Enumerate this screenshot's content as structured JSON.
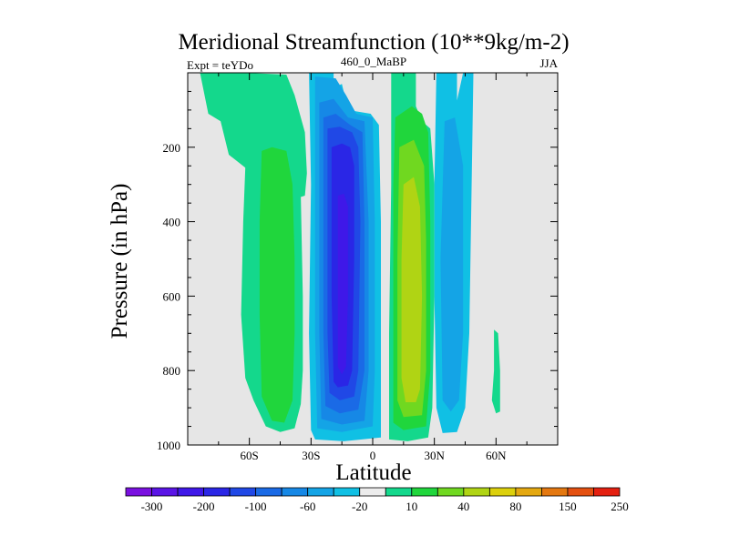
{
  "chart_data": {
    "type": "contour",
    "title": "Meridional Streamfunction (10**9kg/m-2)",
    "left_label": "Expt = teYDo",
    "center_label": "460_0_MaBP",
    "right_label": "JJA",
    "xlabel": "Latitude",
    "ylabel": "Pressure (in hPa)",
    "xlim": [
      -90,
      90
    ],
    "ylim": [
      0,
      1000
    ],
    "y_inverted": true,
    "x_ticks": [
      {
        "value": -60,
        "label": "60S"
      },
      {
        "value": -30,
        "label": "30S"
      },
      {
        "value": 0,
        "label": "0"
      },
      {
        "value": 30,
        "label": "30N"
      },
      {
        "value": 60,
        "label": "60N"
      }
    ],
    "y_ticks": [
      {
        "value": 200,
        "label": "200"
      },
      {
        "value": 400,
        "label": "400"
      },
      {
        "value": 600,
        "label": "600"
      },
      {
        "value": 800,
        "label": "800"
      },
      {
        "value": 1000,
        "label": "1000"
      }
    ],
    "background_color": "#e6e6e6",
    "colorbar": {
      "colors": [
        "#7a10e0",
        "#5a14e6",
        "#3f18e8",
        "#2a26e6",
        "#2048e6",
        "#1a6ae6",
        "#1688e6",
        "#14a4e6",
        "#10c0e4",
        "#ececec",
        "#14d88c",
        "#20d63c",
        "#70d820",
        "#b0d414",
        "#dcd00c",
        "#e4a810",
        "#e47810",
        "#e45010",
        "#e42010"
      ],
      "tick_labels": [
        "-300",
        "-200",
        "-100",
        "-60",
        "-20",
        "10",
        "40",
        "80",
        "150",
        "250"
      ]
    },
    "regions": [
      {
        "name": "sh-upper-green-band",
        "value": 10,
        "color": "#14d88c",
        "points": [
          [
            -84,
            0
          ],
          [
            -62,
            0
          ],
          [
            -42,
            5
          ],
          [
            -38,
            60
          ],
          [
            -33,
            160
          ],
          [
            -32,
            270
          ],
          [
            -33,
            330
          ],
          [
            -50,
            360
          ],
          [
            -58,
            300
          ],
          [
            -62,
            255
          ],
          [
            -70,
            220
          ],
          [
            -74,
            130
          ],
          [
            -80,
            110
          ]
        ]
      },
      {
        "name": "sh-lower-green-band",
        "value": 10,
        "color": "#14d88c",
        "points": [
          [
            -62,
            255
          ],
          [
            -50,
            220
          ],
          [
            -39,
            230
          ],
          [
            -35,
            330
          ],
          [
            -34,
            600
          ],
          [
            -34,
            800
          ],
          [
            -35,
            890
          ],
          [
            -38,
            955
          ],
          [
            -45,
            965
          ],
          [
            -52,
            950
          ],
          [
            -58,
            880
          ],
          [
            -62,
            820
          ],
          [
            -64,
            650
          ],
          [
            -63,
            400
          ]
        ]
      },
      {
        "name": "sh-cell-40",
        "value": 40,
        "color": "#20d63c",
        "points": [
          [
            -54,
            210
          ],
          [
            -49,
            200
          ],
          [
            -42,
            210
          ],
          [
            -39,
            300
          ],
          [
            -38,
            500
          ],
          [
            -38,
            700
          ],
          [
            -39,
            880
          ],
          [
            -43,
            940
          ],
          [
            -49,
            935
          ],
          [
            -54,
            870
          ],
          [
            -55,
            650
          ],
          [
            -55,
            400
          ]
        ]
      },
      {
        "name": "deep-blue-minus20",
        "value": -20,
        "color": "#10c0e4",
        "points": [
          [
            -31,
            0
          ],
          [
            -19,
            0
          ],
          [
            -19,
            40
          ],
          [
            -15,
            30
          ],
          [
            -12,
            100
          ],
          [
            -1,
            110
          ],
          [
            3,
            140
          ],
          [
            4,
            400
          ],
          [
            4,
            800
          ],
          [
            4,
            980
          ],
          [
            -14,
            990
          ],
          [
            -28,
            985
          ],
          [
            -30,
            960
          ],
          [
            -31,
            700
          ],
          [
            -30,
            300
          ]
        ]
      },
      {
        "name": "deep-blue-minus60",
        "value": -60,
        "color": "#14a4e6",
        "points": [
          [
            -28,
            10
          ],
          [
            -18,
            15
          ],
          [
            -13,
            60
          ],
          [
            -8,
            110
          ],
          [
            0,
            120
          ],
          [
            1,
            400
          ],
          [
            1,
            800
          ],
          [
            0,
            950
          ],
          [
            -15,
            965
          ],
          [
            -27,
            955
          ],
          [
            -28,
            700
          ],
          [
            -28,
            300
          ]
        ]
      },
      {
        "name": "deep-blue-minus100",
        "value": -100,
        "color": "#1688e6",
        "points": [
          [
            -26,
            80
          ],
          [
            -19,
            70
          ],
          [
            -12,
            120
          ],
          [
            -4,
            130
          ],
          [
            -2,
            400
          ],
          [
            -2,
            800
          ],
          [
            -4,
            935
          ],
          [
            -15,
            945
          ],
          [
            -25,
            930
          ],
          [
            -26,
            700
          ],
          [
            -26,
            300
          ]
        ]
      },
      {
        "name": "deep-blue-minus150",
        "value": -150,
        "color": "#1a6ae6",
        "points": [
          [
            -24,
            120
          ],
          [
            -18,
            110
          ],
          [
            -11,
            140
          ],
          [
            -5,
            160
          ],
          [
            -4,
            400
          ],
          [
            -4,
            800
          ],
          [
            -7,
            905
          ],
          [
            -16,
            915
          ],
          [
            -23,
            895
          ],
          [
            -24,
            700
          ],
          [
            -24,
            300
          ]
        ]
      },
      {
        "name": "deep-blue-minus200",
        "value": -200,
        "color": "#2048e6",
        "points": [
          [
            -22,
            150
          ],
          [
            -16,
            145
          ],
          [
            -10,
            160
          ],
          [
            -7,
            200
          ],
          [
            -6,
            400
          ],
          [
            -7,
            800
          ],
          [
            -9,
            870
          ],
          [
            -16,
            880
          ],
          [
            -21,
            860
          ],
          [
            -22,
            700
          ],
          [
            -22,
            300
          ]
        ]
      },
      {
        "name": "deep-blue-minus250",
        "value": -250,
        "color": "#2a26e6",
        "points": [
          [
            -20,
            200
          ],
          [
            -15,
            190
          ],
          [
            -11,
            200
          ],
          [
            -9,
            250
          ],
          [
            -9,
            500
          ],
          [
            -10,
            800
          ],
          [
            -12,
            840
          ],
          [
            -17,
            845
          ],
          [
            -19,
            830
          ],
          [
            -20,
            600
          ]
        ]
      },
      {
        "name": "deep-blue-minus300",
        "value": -300,
        "color": "#3f18e8",
        "points": [
          [
            -17,
            330
          ],
          [
            -14,
            325
          ],
          [
            -12,
            360
          ],
          [
            -12,
            600
          ],
          [
            -13,
            790
          ],
          [
            -15,
            810
          ],
          [
            -17,
            790
          ],
          [
            -17,
            550
          ]
        ]
      },
      {
        "name": "nh-cell-10",
        "value": 10,
        "color": "#14d88c",
        "points": [
          [
            9,
            0
          ],
          [
            21,
            0
          ],
          [
            21,
            90
          ],
          [
            24,
            130
          ],
          [
            28,
            150
          ],
          [
            30,
            300
          ],
          [
            30,
            600
          ],
          [
            29,
            900
          ],
          [
            27,
            980
          ],
          [
            17,
            990
          ],
          [
            8,
            985
          ],
          [
            8,
            700
          ],
          [
            9,
            300
          ]
        ]
      },
      {
        "name": "nh-cell-40",
        "value": 40,
        "color": "#20d63c",
        "points": [
          [
            11,
            120
          ],
          [
            19,
            90
          ],
          [
            24,
            110
          ],
          [
            27,
            160
          ],
          [
            28,
            400
          ],
          [
            28,
            800
          ],
          [
            26,
            950
          ],
          [
            15,
            960
          ],
          [
            10,
            940
          ],
          [
            10,
            600
          ],
          [
            10,
            300
          ]
        ]
      },
      {
        "name": "nh-cell-80",
        "value": 80,
        "color": "#70d820",
        "points": [
          [
            13,
            200
          ],
          [
            20,
            180
          ],
          [
            25,
            250
          ],
          [
            26,
            450
          ],
          [
            26,
            800
          ],
          [
            24,
            920
          ],
          [
            15,
            925
          ],
          [
            12,
            880
          ],
          [
            12,
            500
          ]
        ]
      },
      {
        "name": "nh-cell-150",
        "value": 150,
        "color": "#b0d414",
        "points": [
          [
            15,
            300
          ],
          [
            20,
            280
          ],
          [
            23,
            360
          ],
          [
            24,
            600
          ],
          [
            23,
            850
          ],
          [
            21,
            885
          ],
          [
            16,
            885
          ],
          [
            14,
            820
          ],
          [
            14,
            500
          ]
        ]
      },
      {
        "name": "nh-mid-blue-minus20",
        "value": -20,
        "color": "#10c0e4",
        "points": [
          [
            31,
            0
          ],
          [
            41,
            0
          ],
          [
            41,
            250
          ],
          [
            40,
            100
          ],
          [
            44,
            0
          ],
          [
            49,
            0
          ],
          [
            47,
            700
          ],
          [
            45,
            900
          ],
          [
            41,
            965
          ],
          [
            34,
            968
          ],
          [
            31,
            900
          ],
          [
            30,
            600
          ],
          [
            30,
            300
          ]
        ]
      },
      {
        "name": "nh-mid-blue-minus60",
        "value": -60,
        "color": "#14a4e6",
        "points": [
          [
            35,
            130
          ],
          [
            40,
            120
          ],
          [
            44,
            250
          ],
          [
            44,
            700
          ],
          [
            42,
            880
          ],
          [
            38,
            910
          ],
          [
            34,
            880
          ],
          [
            33,
            500
          ]
        ]
      },
      {
        "name": "nh-right-green-strip",
        "value": 10,
        "color": "#14d88c",
        "points": [
          [
            59,
            690
          ],
          [
            61,
            700
          ],
          [
            62,
            800
          ],
          [
            62,
            910
          ],
          [
            60,
            915
          ],
          [
            58,
            880
          ],
          [
            59,
            800
          ]
        ]
      }
    ]
  }
}
